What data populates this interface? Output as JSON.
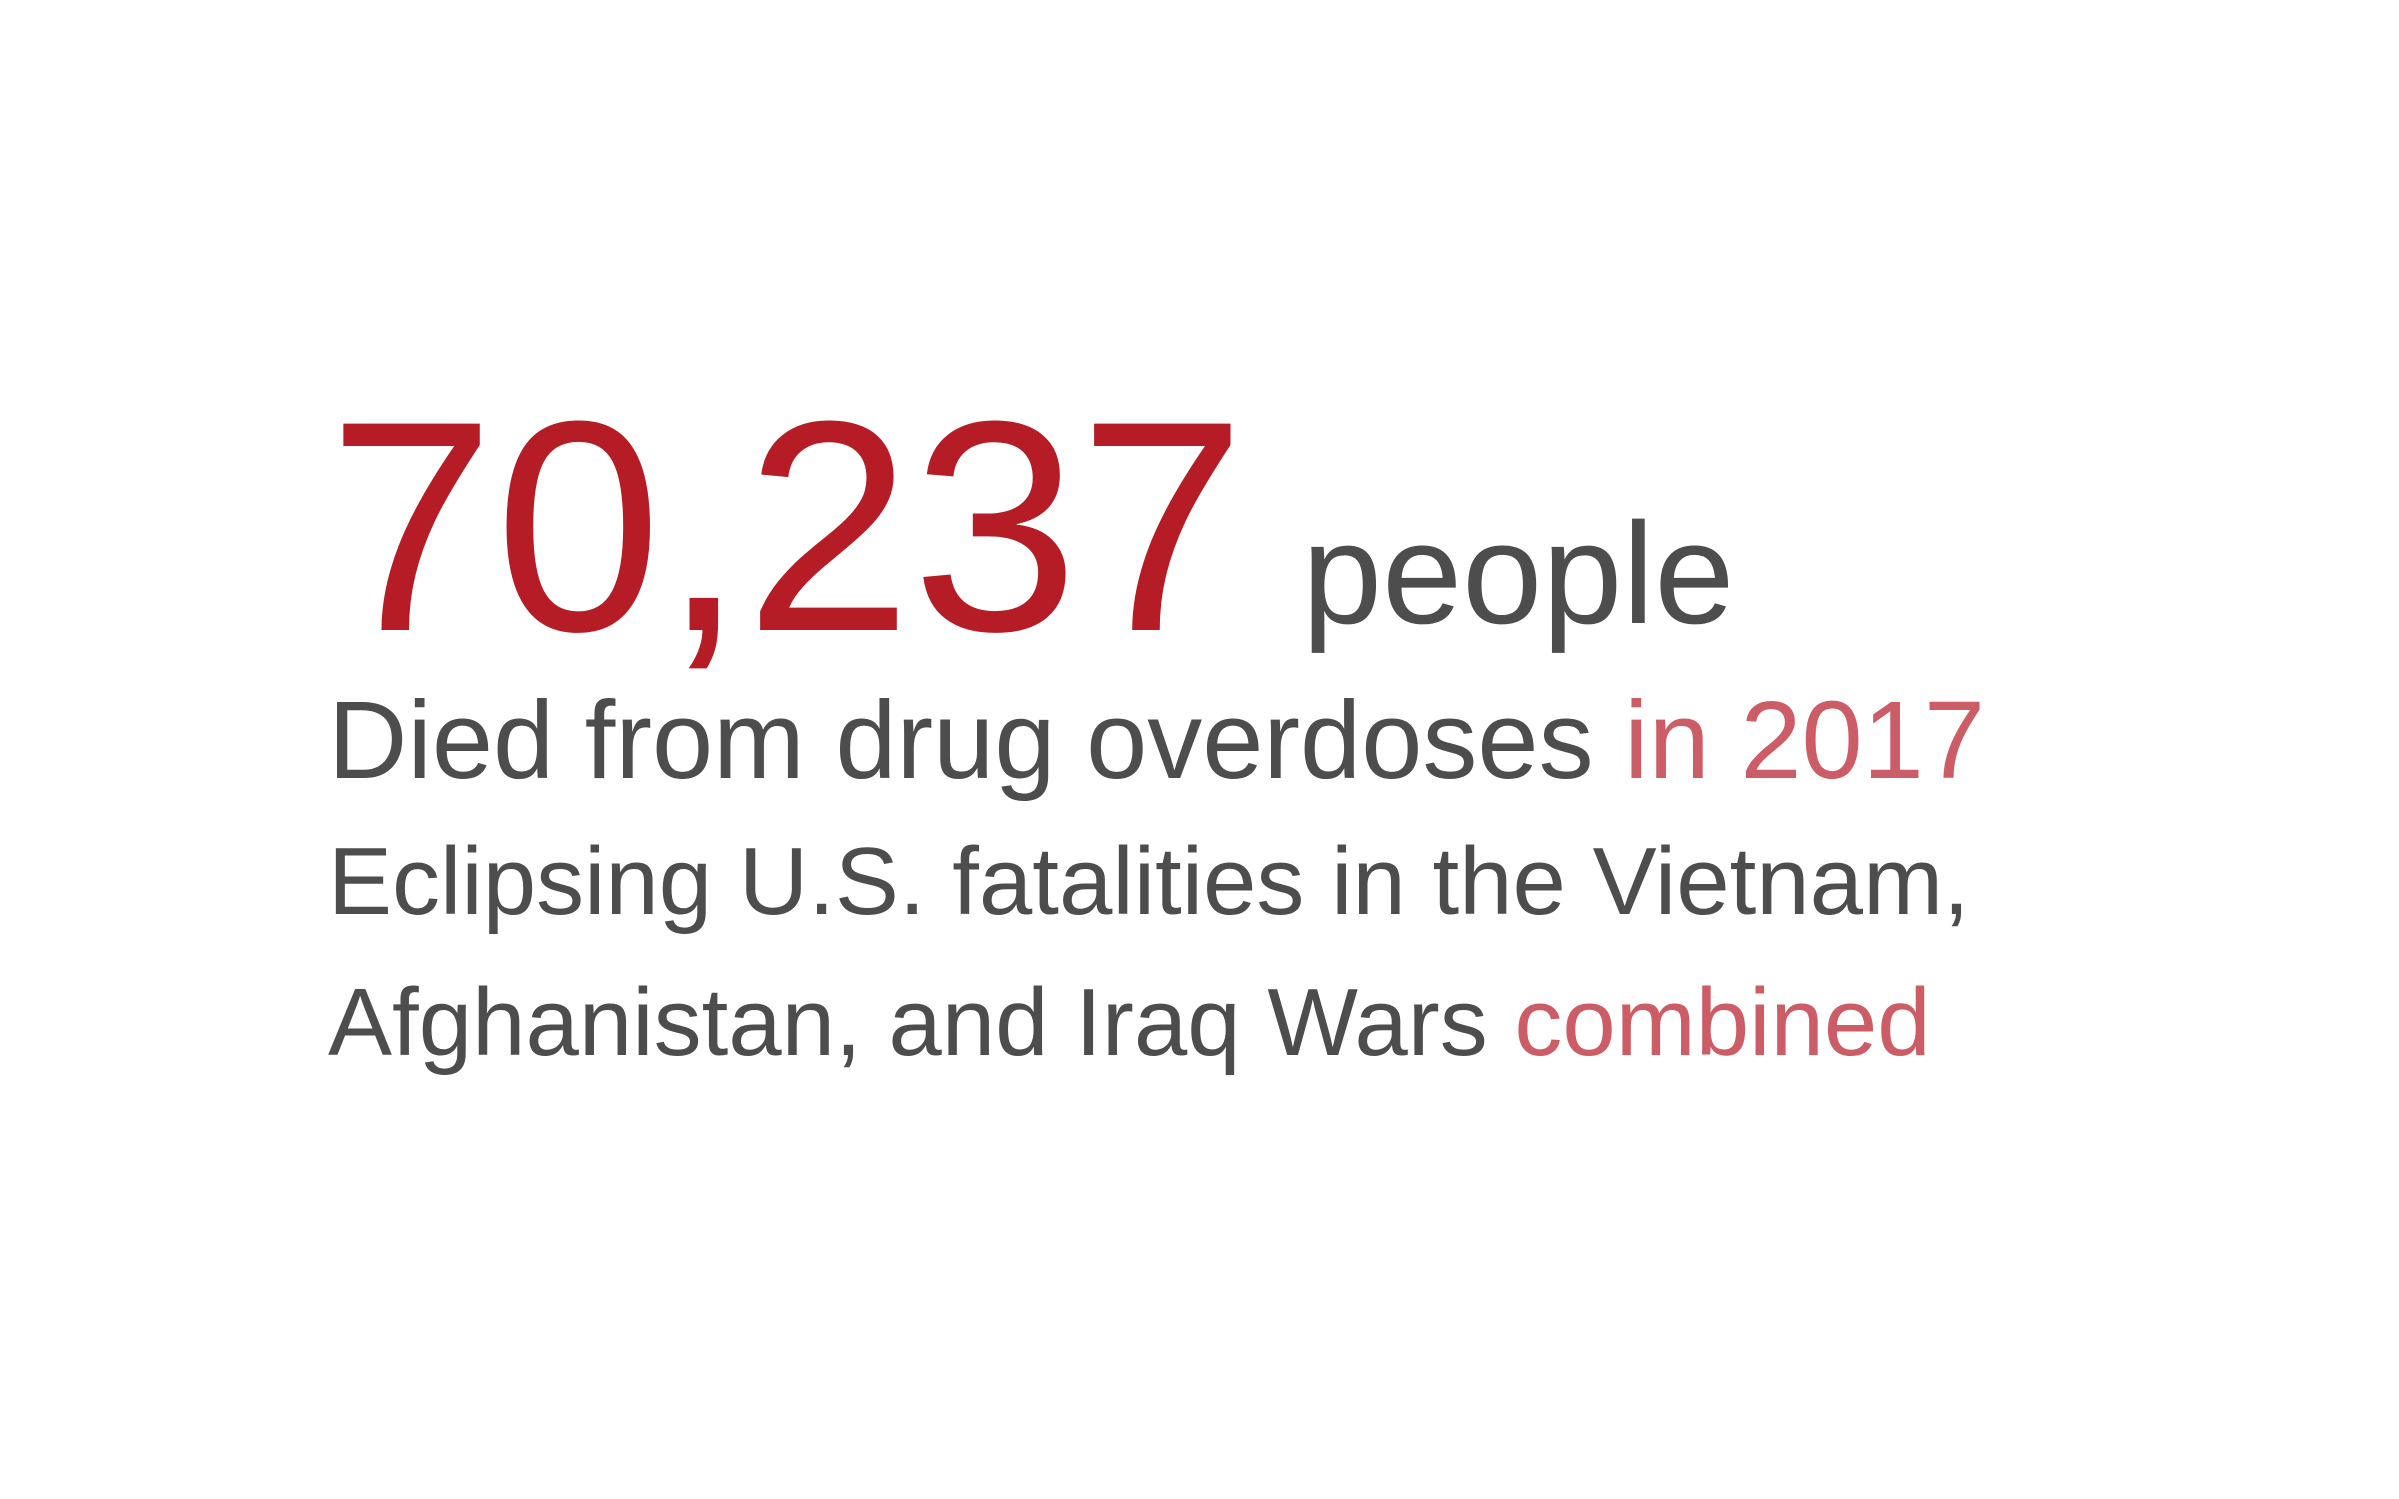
{
  "headline": {
    "number": "70,237",
    "unit": "people"
  },
  "line1": {
    "text": "Died from drug overdoses ",
    "accent": "in 2017"
  },
  "line2": {
    "text": "Eclipsing U.S. fatalities in the Vietnam,"
  },
  "line3": {
    "text": "Afghanistan, and Iraq Wars ",
    "accent": "combined"
  },
  "colors": {
    "number": "#b51c25",
    "text": "#4d4d4d",
    "accent": "#cc5c65"
  }
}
